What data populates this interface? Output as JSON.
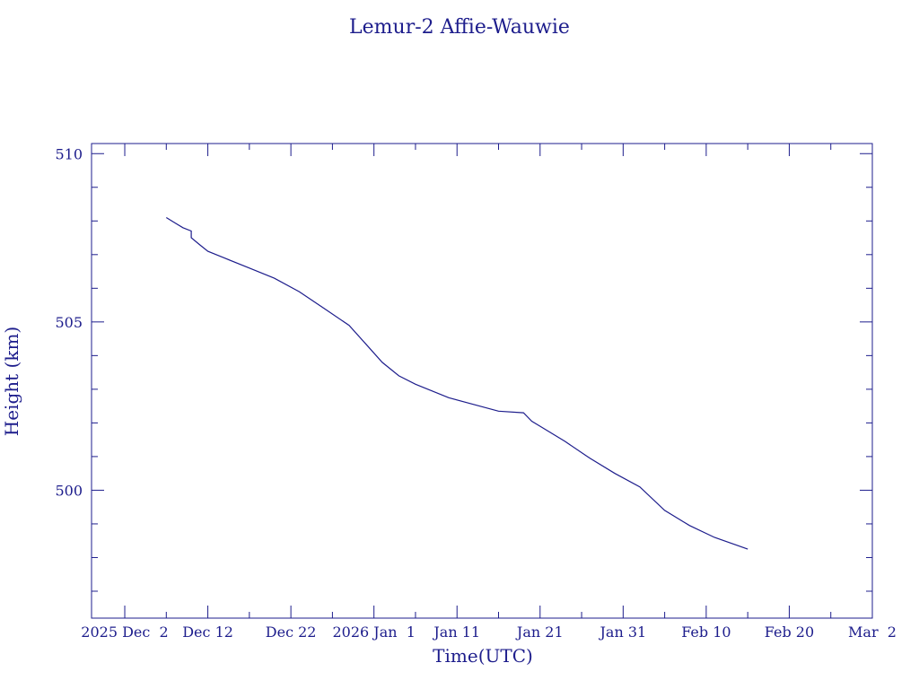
{
  "chart_data": {
    "type": "line",
    "title": "Lemur-2 Affie-Wauwie",
    "xlabel": "Time(UTC)",
    "ylabel": "Height (km)",
    "x_type": "date",
    "xlim": [
      "2025-11-28",
      "2026-03-02"
    ],
    "ylim": [
      496.2,
      510.3
    ],
    "x_ticks": [
      {
        "date": "2025-12-02",
        "label": "2025 Dec  2"
      },
      {
        "date": "2025-12-12",
        "label": "Dec 12"
      },
      {
        "date": "2025-12-22",
        "label": "Dec 22"
      },
      {
        "date": "2026-01-01",
        "label": "2026 Jan  1"
      },
      {
        "date": "2026-01-11",
        "label": "Jan 11"
      },
      {
        "date": "2026-01-21",
        "label": "Jan 21"
      },
      {
        "date": "2026-01-31",
        "label": "Jan 31"
      },
      {
        "date": "2026-02-10",
        "label": "Feb 10"
      },
      {
        "date": "2026-02-20",
        "label": "Feb 20"
      },
      {
        "date": "2026-03-02",
        "label": "Mar  2"
      }
    ],
    "y_ticks": [
      {
        "value": 500,
        "label": "500"
      },
      {
        "value": 505,
        "label": "505"
      },
      {
        "value": 510,
        "label": "510"
      }
    ],
    "grid": false,
    "series": [
      {
        "x": [
          "2025-12-07",
          "2025-12-08",
          "2025-12-09",
          "2025-12-10",
          "2025-12-10",
          "2025-12-11",
          "2025-12-12",
          "2025-12-14",
          "2025-12-17",
          "2025-12-20",
          "2025-12-23",
          "2025-12-26",
          "2025-12-29",
          "2025-12-31",
          "2026-01-02",
          "2026-01-04",
          "2026-01-06",
          "2026-01-08",
          "2026-01-10",
          "2026-01-13",
          "2026-01-16",
          "2026-01-19",
          "2026-01-20",
          "2026-01-21",
          "2026-01-24",
          "2026-01-27",
          "2026-01-30",
          "2026-02-02",
          "2026-02-05",
          "2026-02-08",
          "2026-02-11",
          "2026-02-15"
        ],
        "y": [
          508.1,
          507.95,
          507.8,
          507.7,
          507.5,
          507.3,
          507.1,
          506.9,
          506.6,
          506.3,
          505.9,
          505.4,
          504.9,
          504.35,
          503.8,
          503.4,
          503.15,
          502.95,
          502.75,
          502.55,
          502.35,
          502.3,
          502.05,
          501.9,
          501.45,
          500.95,
          500.5,
          500.1,
          499.4,
          498.95,
          498.6,
          498.25
        ]
      }
    ]
  },
  "colors": {
    "ink": "#1d1d8c",
    "background": "#ffffff"
  }
}
